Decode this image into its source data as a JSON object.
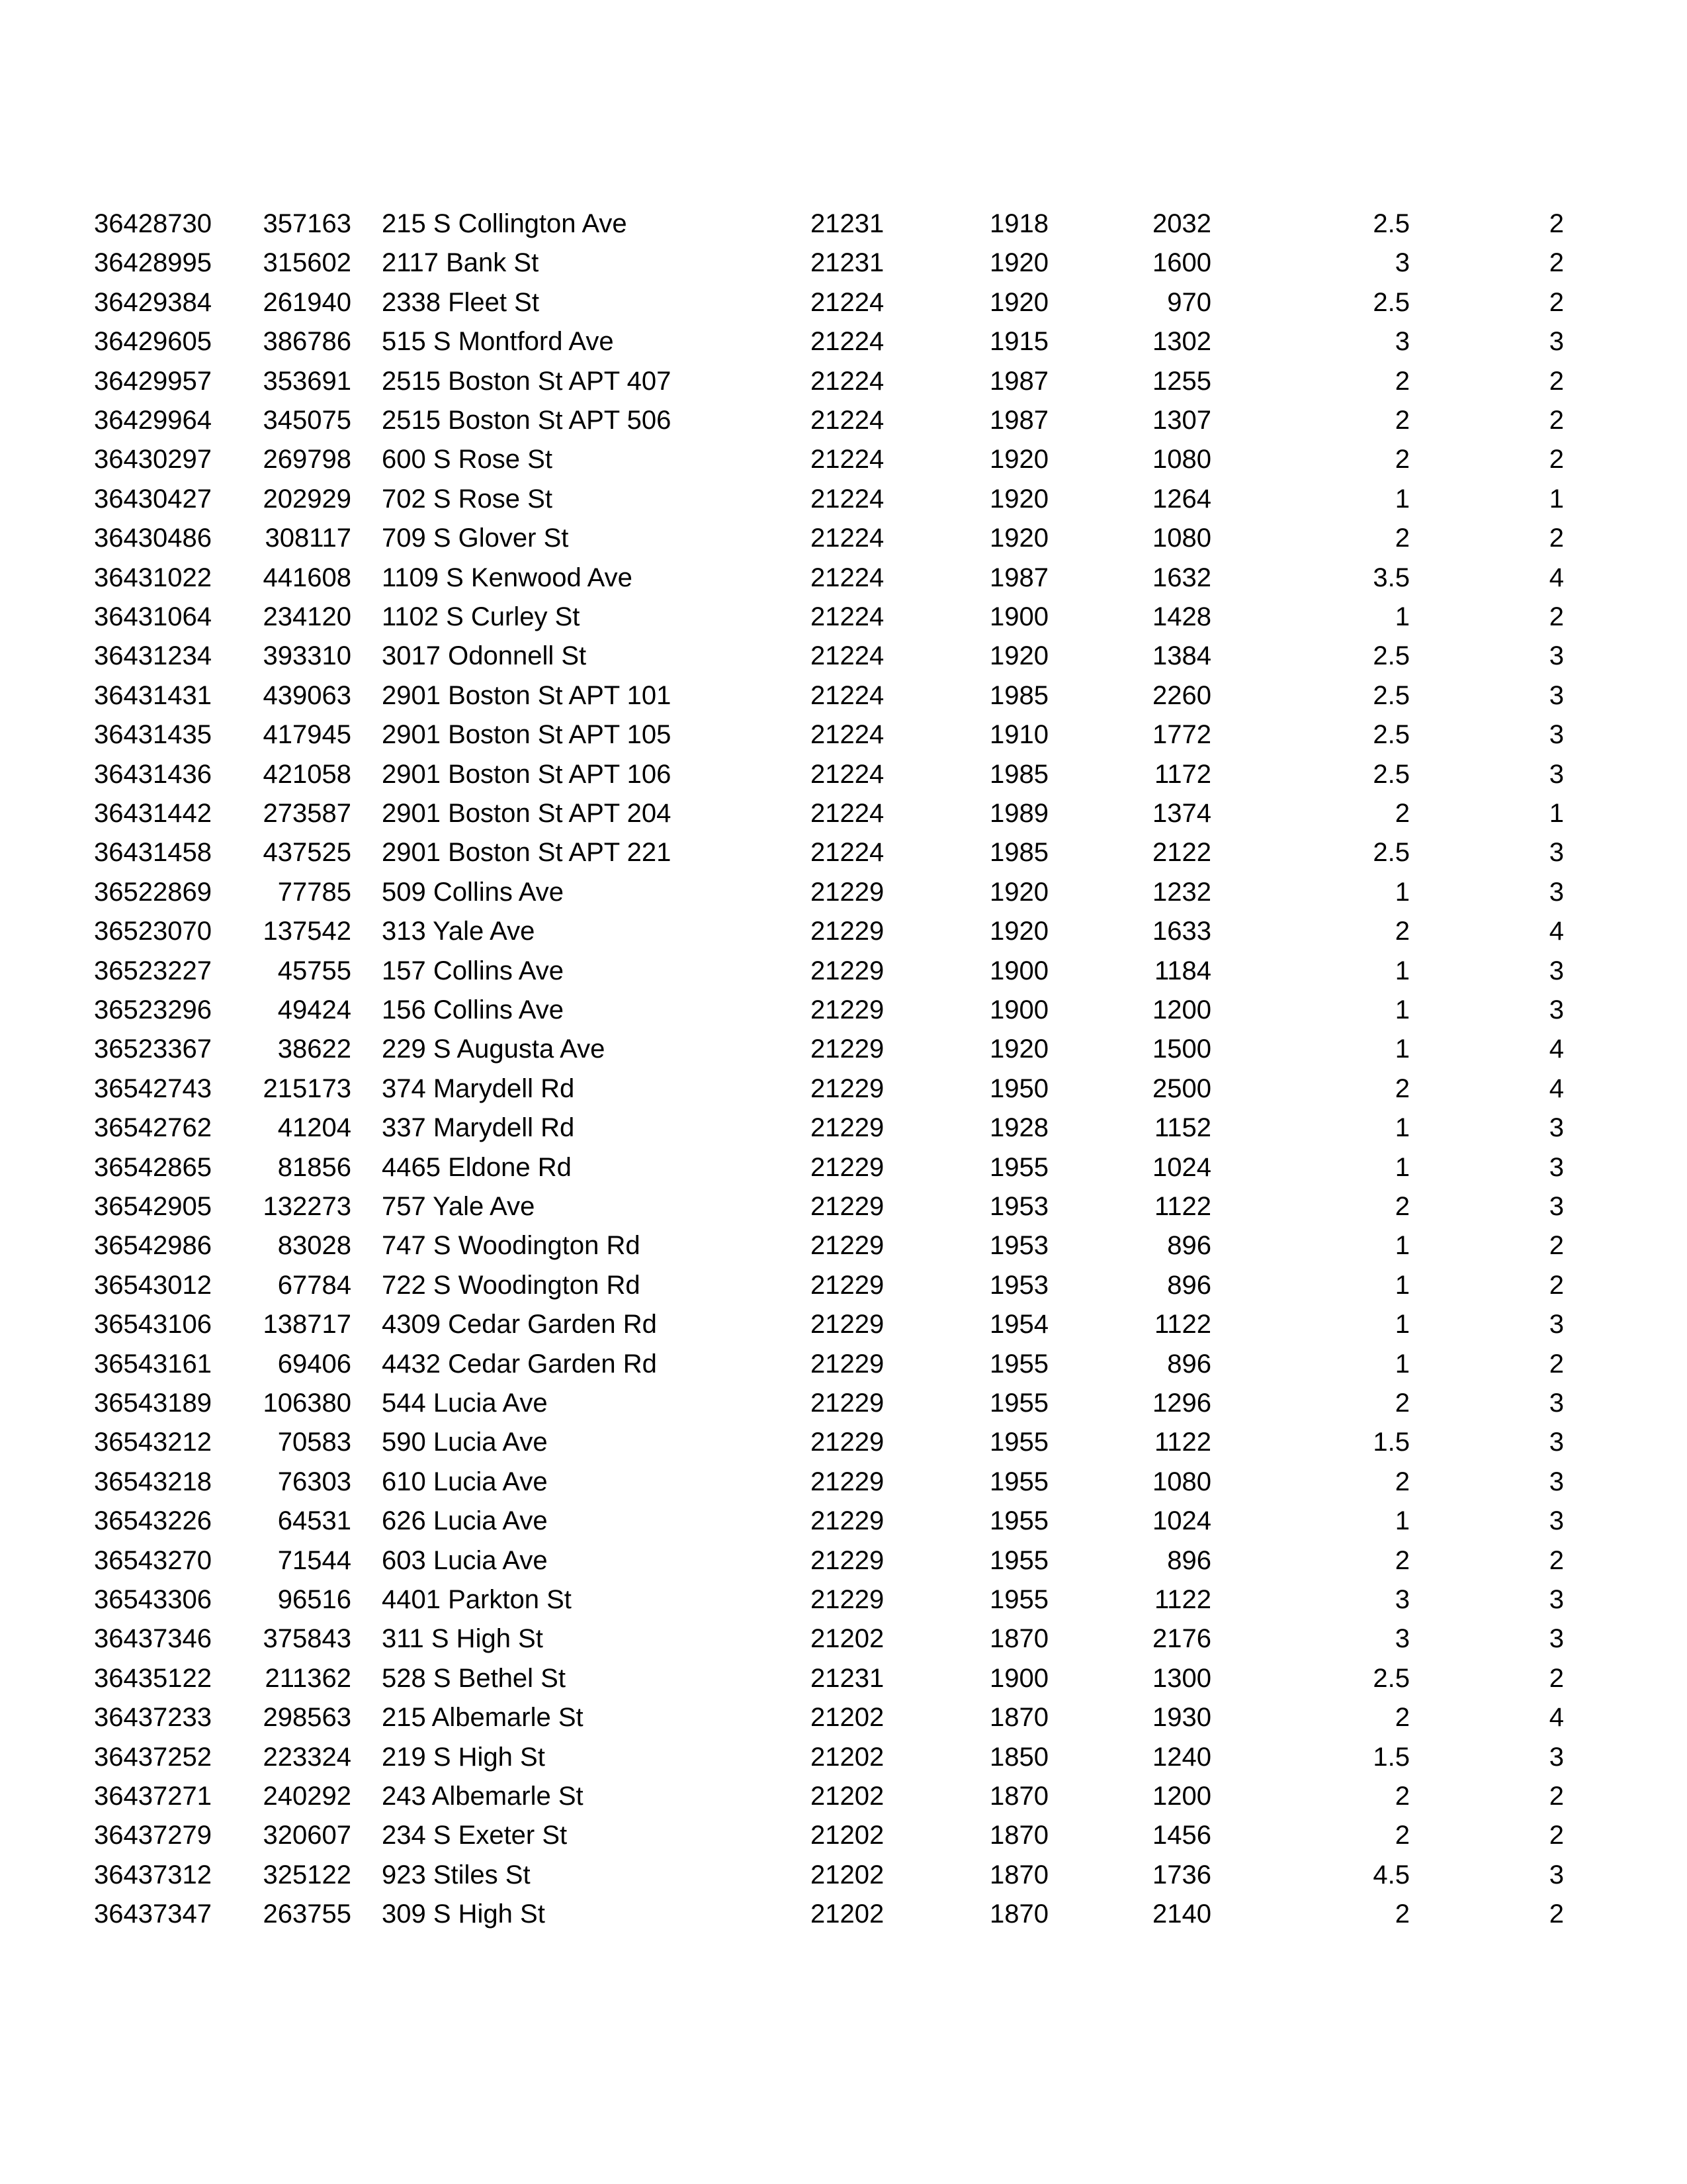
{
  "table": {
    "rows": [
      [
        "36428730",
        "357163",
        "215 S Collington Ave",
        "21231",
        "1918",
        "2032",
        "2.5",
        "2"
      ],
      [
        "36428995",
        "315602",
        "2117 Bank St",
        "21231",
        "1920",
        "1600",
        "3",
        "2"
      ],
      [
        "36429384",
        "261940",
        "2338 Fleet St",
        "21224",
        "1920",
        "970",
        "2.5",
        "2"
      ],
      [
        "36429605",
        "386786",
        "515 S Montford Ave",
        "21224",
        "1915",
        "1302",
        "3",
        "3"
      ],
      [
        "36429957",
        "353691",
        "2515 Boston St APT 407",
        "21224",
        "1987",
        "1255",
        "2",
        "2"
      ],
      [
        "36429964",
        "345075",
        "2515 Boston St APT 506",
        "21224",
        "1987",
        "1307",
        "2",
        "2"
      ],
      [
        "36430297",
        "269798",
        "600 S Rose St",
        "21224",
        "1920",
        "1080",
        "2",
        "2"
      ],
      [
        "36430427",
        "202929",
        "702 S Rose St",
        "21224",
        "1920",
        "1264",
        "1",
        "1"
      ],
      [
        "36430486",
        "308117",
        "709 S Glover St",
        "21224",
        "1920",
        "1080",
        "2",
        "2"
      ],
      [
        "36431022",
        "441608",
        "1109 S Kenwood Ave",
        "21224",
        "1987",
        "1632",
        "3.5",
        "4"
      ],
      [
        "36431064",
        "234120",
        "1102 S Curley St",
        "21224",
        "1900",
        "1428",
        "1",
        "2"
      ],
      [
        "36431234",
        "393310",
        "3017 Odonnell St",
        "21224",
        "1920",
        "1384",
        "2.5",
        "3"
      ],
      [
        "36431431",
        "439063",
        "2901 Boston St APT 101",
        "21224",
        "1985",
        "2260",
        "2.5",
        "3"
      ],
      [
        "36431435",
        "417945",
        "2901 Boston St APT 105",
        "21224",
        "1910",
        "1772",
        "2.5",
        "3"
      ],
      [
        "36431436",
        "421058",
        "2901 Boston St APT 106",
        "21224",
        "1985",
        "1172",
        "2.5",
        "3"
      ],
      [
        "36431442",
        "273587",
        "2901 Boston St APT 204",
        "21224",
        "1989",
        "1374",
        "2",
        "1"
      ],
      [
        "36431458",
        "437525",
        "2901 Boston St APT 221",
        "21224",
        "1985",
        "2122",
        "2.5",
        "3"
      ],
      [
        "36522869",
        "77785",
        "509 Collins Ave",
        "21229",
        "1920",
        "1232",
        "1",
        "3"
      ],
      [
        "36523070",
        "137542",
        "313 Yale Ave",
        "21229",
        "1920",
        "1633",
        "2",
        "4"
      ],
      [
        "36523227",
        "45755",
        "157 Collins Ave",
        "21229",
        "1900",
        "1184",
        "1",
        "3"
      ],
      [
        "36523296",
        "49424",
        "156 Collins Ave",
        "21229",
        "1900",
        "1200",
        "1",
        "3"
      ],
      [
        "36523367",
        "38622",
        "229 S Augusta Ave",
        "21229",
        "1920",
        "1500",
        "1",
        "4"
      ],
      [
        "36542743",
        "215173",
        "374 Marydell Rd",
        "21229",
        "1950",
        "2500",
        "2",
        "4"
      ],
      [
        "36542762",
        "41204",
        "337 Marydell Rd",
        "21229",
        "1928",
        "1152",
        "1",
        "3"
      ],
      [
        "36542865",
        "81856",
        "4465 Eldone Rd",
        "21229",
        "1955",
        "1024",
        "1",
        "3"
      ],
      [
        "36542905",
        "132273",
        "757 Yale Ave",
        "21229",
        "1953",
        "1122",
        "2",
        "3"
      ],
      [
        "36542986",
        "83028",
        "747 S Woodington Rd",
        "21229",
        "1953",
        "896",
        "1",
        "2"
      ],
      [
        "36543012",
        "67784",
        "722 S Woodington Rd",
        "21229",
        "1953",
        "896",
        "1",
        "2"
      ],
      [
        "36543106",
        "138717",
        "4309 Cedar Garden Rd",
        "21229",
        "1954",
        "1122",
        "1",
        "3"
      ],
      [
        "36543161",
        "69406",
        "4432 Cedar Garden Rd",
        "21229",
        "1955",
        "896",
        "1",
        "2"
      ],
      [
        "36543189",
        "106380",
        "544 Lucia Ave",
        "21229",
        "1955",
        "1296",
        "2",
        "3"
      ],
      [
        "36543212",
        "70583",
        "590 Lucia Ave",
        "21229",
        "1955",
        "1122",
        "1.5",
        "3"
      ],
      [
        "36543218",
        "76303",
        "610 Lucia Ave",
        "21229",
        "1955",
        "1080",
        "2",
        "3"
      ],
      [
        "36543226",
        "64531",
        "626 Lucia Ave",
        "21229",
        "1955",
        "1024",
        "1",
        "3"
      ],
      [
        "36543270",
        "71544",
        "603 Lucia Ave",
        "21229",
        "1955",
        "896",
        "2",
        "2"
      ],
      [
        "36543306",
        "96516",
        "4401 Parkton St",
        "21229",
        "1955",
        "1122",
        "3",
        "3"
      ],
      [
        "36437346",
        "375843",
        "311 S High St",
        "21202",
        "1870",
        "2176",
        "3",
        "3"
      ],
      [
        "36435122",
        "211362",
        "528 S Bethel St",
        "21231",
        "1900",
        "1300",
        "2.5",
        "2"
      ],
      [
        "36437233",
        "298563",
        "215 Albemarle St",
        "21202",
        "1870",
        "1930",
        "2",
        "4"
      ],
      [
        "36437252",
        "223324",
        "219 S High St",
        "21202",
        "1850",
        "1240",
        "1.5",
        "3"
      ],
      [
        "36437271",
        "240292",
        "243 Albemarle St",
        "21202",
        "1870",
        "1200",
        "2",
        "2"
      ],
      [
        "36437279",
        "320607",
        "234 S Exeter St",
        "21202",
        "1870",
        "1456",
        "2",
        "2"
      ],
      [
        "36437312",
        "325122",
        "923 Stiles St",
        "21202",
        "1870",
        "1736",
        "4.5",
        "3"
      ],
      [
        "36437347",
        "263755",
        "309 S High St",
        "21202",
        "1870",
        "2140",
        "2",
        "2"
      ]
    ]
  }
}
